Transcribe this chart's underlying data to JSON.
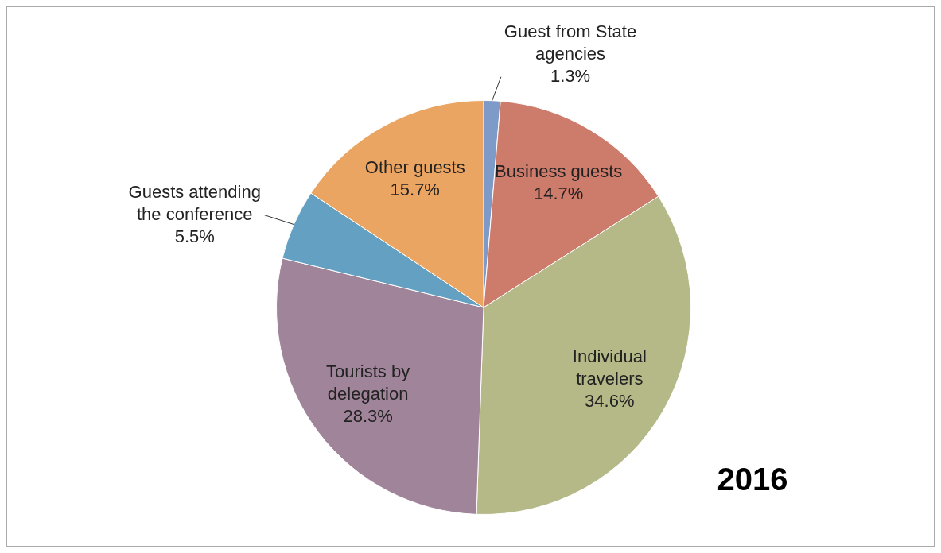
{
  "chart_data": {
    "type": "pie",
    "categories": [
      "Guest from State agencies",
      "Business guests",
      "Individual travelers",
      "Tourists by delegation",
      "Guests attending the conference",
      "Other guests"
    ],
    "values": [
      1.3,
      14.7,
      34.6,
      28.3,
      5.5,
      15.7
    ],
    "value_labels": [
      "1.3%",
      "14.7%",
      "34.6%",
      "28.3%",
      "5.5%",
      "15.7%"
    ],
    "colors": [
      "#7e9ac9",
      "#cd7b6b",
      "#b5b887",
      "#a08499",
      "#63a0c1",
      "#eba562"
    ],
    "legend": false,
    "annotations": [
      "2016"
    ]
  }
}
